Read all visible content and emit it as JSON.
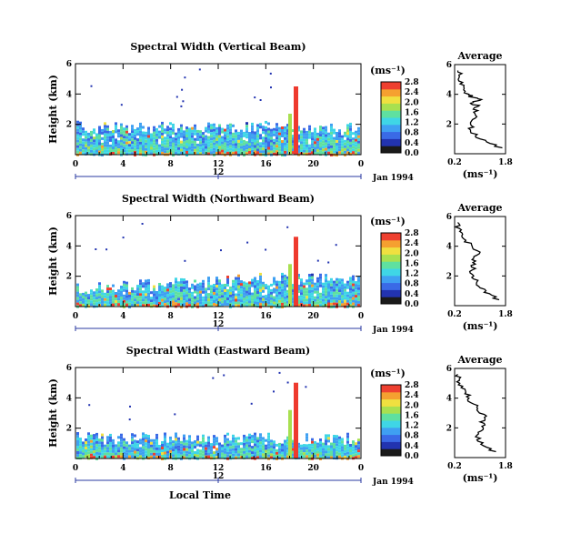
{
  "figure": {
    "xlabel": "Local Time",
    "date_label": "Jan 1994",
    "noon_label": "12",
    "ylabel": "Height (km)",
    "cb_unit": "(ms⁻¹)",
    "avg_title": "Average",
    "avg_xlabel": "(ms⁻¹)"
  },
  "chart_data": [
    {
      "type": "heatmap",
      "title": "Spectral Width (Vertical Beam)",
      "ylabel": "Height (km)",
      "xlabel": "Local Time",
      "x_ticks": [
        "0",
        "4",
        "8",
        "12",
        "16",
        "20",
        "0"
      ],
      "xlim": [
        0,
        24
      ],
      "y_ticks": [
        "2",
        "4",
        "6"
      ],
      "ylim": [
        0,
        6
      ],
      "colorbar": {
        "unit": "(ms⁻¹)",
        "ticks": [
          "0.0",
          "0.4",
          "0.8",
          "1.2",
          "1.6",
          "2.0",
          "2.4",
          "2.8"
        ]
      },
      "data_top_km": 2.0,
      "spike": {
        "time": 18.5,
        "top_km": 4.5
      },
      "average_profile": {
        "title": "Average",
        "xlabel": "(ms⁻¹)",
        "x_ticks": [
          "0.2",
          "1.8"
        ],
        "xlim": [
          0.2,
          1.8
        ],
        "y_ticks": [
          "2",
          "4",
          "6"
        ],
        "height_km": [
          0.4,
          0.8,
          1.2,
          1.6,
          2.0,
          2.4,
          2.8,
          3.2,
          3.4,
          3.6,
          3.8,
          4.0,
          4.4,
          4.8,
          5.2,
          5.6
        ],
        "width_ms": [
          1.7,
          1.2,
          0.85,
          0.7,
          0.7,
          0.85,
          0.8,
          0.95,
          0.7,
          1.0,
          0.75,
          0.65,
          0.5,
          0.45,
          0.35,
          0.3
        ]
      }
    },
    {
      "type": "heatmap",
      "title": "Spectral Width (Northward Beam)",
      "ylabel": "Height (km)",
      "xlabel": "Local Time",
      "x_ticks": [
        "0",
        "4",
        "8",
        "12",
        "16",
        "20",
        "0"
      ],
      "xlim": [
        0,
        24
      ],
      "y_ticks": [
        "2",
        "4",
        "6"
      ],
      "ylim": [
        0,
        6
      ],
      "colorbar": {
        "unit": "(ms⁻¹)",
        "ticks": [
          "0.0",
          "0.4",
          "0.8",
          "1.2",
          "1.6",
          "2.0",
          "2.4",
          "2.8"
        ]
      },
      "data_top_km": 2.0,
      "spike": {
        "time": 18.5,
        "top_km": 4.6
      },
      "average_profile": {
        "title": "Average",
        "xlabel": "(ms⁻¹)",
        "x_ticks": [
          "0.2",
          "1.8"
        ],
        "xlim": [
          0.2,
          1.8
        ],
        "y_ticks": [
          "2",
          "4",
          "6"
        ],
        "height_km": [
          0.4,
          0.8,
          1.2,
          1.6,
          2.0,
          2.4,
          2.8,
          3.2,
          3.6,
          4.0,
          4.4,
          4.8,
          5.2,
          5.6
        ],
        "width_ms": [
          1.6,
          1.3,
          1.0,
          0.9,
          0.8,
          0.75,
          0.85,
          0.8,
          1.0,
          0.75,
          0.55,
          0.45,
          0.35,
          0.3
        ]
      }
    },
    {
      "type": "heatmap",
      "title": "Spectral Width (Eastward Beam)",
      "ylabel": "Height (km)",
      "xlabel": "Local Time",
      "x_ticks": [
        "0",
        "4",
        "8",
        "12",
        "16",
        "20",
        "0"
      ],
      "xlim": [
        0,
        24
      ],
      "y_ticks": [
        "2",
        "4",
        "6"
      ],
      "ylim": [
        0,
        6
      ],
      "colorbar": {
        "unit": "(ms⁻¹)",
        "ticks": [
          "0.0",
          "0.4",
          "0.8",
          "1.2",
          "1.6",
          "2.0",
          "2.4",
          "2.8"
        ]
      },
      "data_top_km": 1.5,
      "spike": {
        "time": 18.5,
        "top_km": 5.0
      },
      "average_profile": {
        "title": "Average",
        "xlabel": "(ms⁻¹)",
        "x_ticks": [
          "0.2",
          "1.8"
        ],
        "xlim": [
          0.2,
          1.8
        ],
        "y_ticks": [
          "2",
          "4",
          "6"
        ],
        "height_km": [
          0.4,
          0.8,
          1.2,
          1.6,
          2.0,
          2.4,
          2.8,
          3.2,
          3.6,
          4.0,
          4.4,
          4.8,
          5.2,
          5.6
        ],
        "width_ms": [
          1.5,
          1.1,
          0.9,
          0.95,
          1.1,
          1.0,
          1.2,
          0.9,
          0.8,
          0.65,
          0.55,
          0.45,
          0.35,
          0.3
        ]
      }
    }
  ]
}
